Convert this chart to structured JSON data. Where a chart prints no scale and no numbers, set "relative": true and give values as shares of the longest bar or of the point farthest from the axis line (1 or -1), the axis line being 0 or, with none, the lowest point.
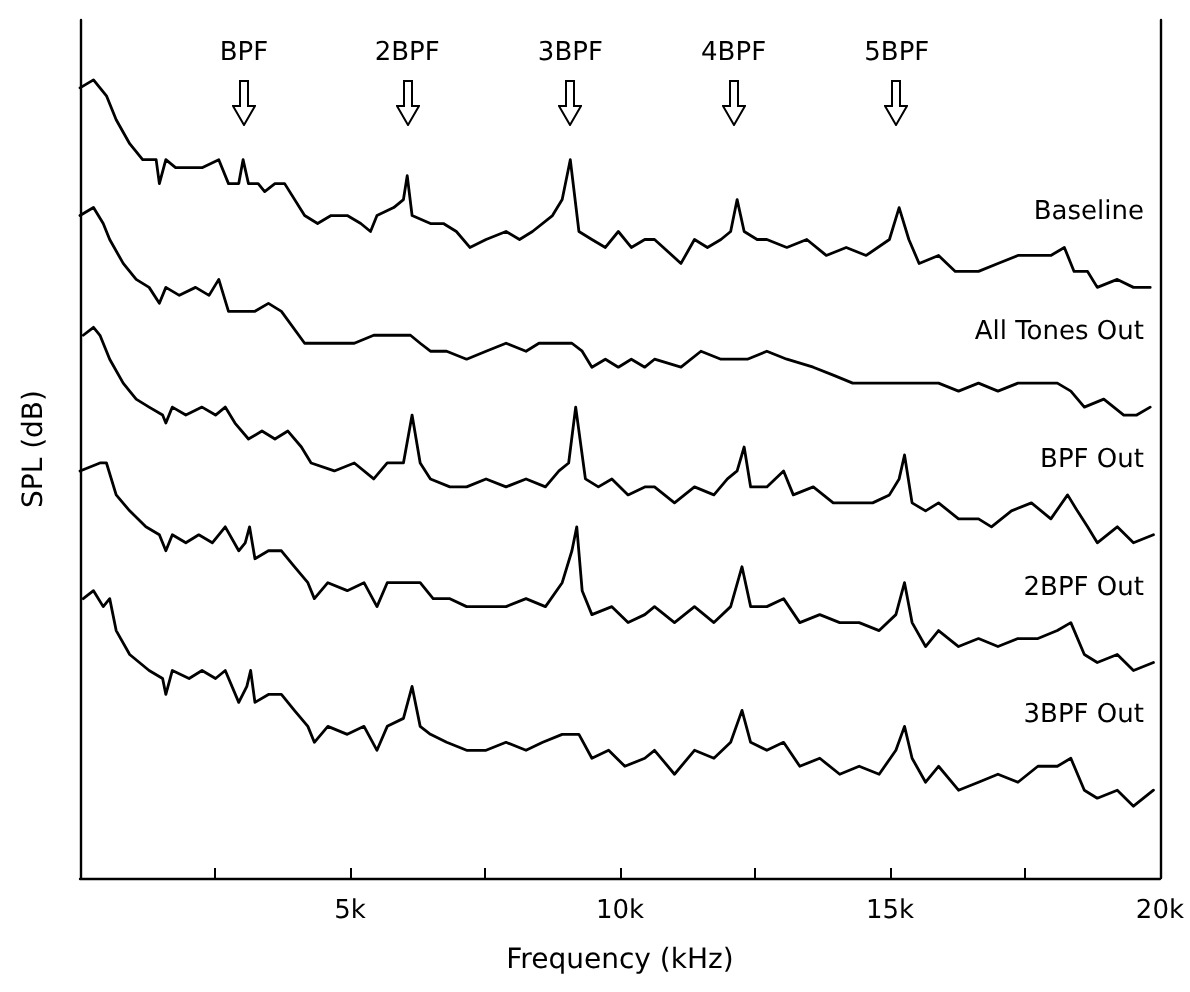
{
  "chart_data": {
    "type": "line",
    "relative": true,
    "xlabel": "Frequency (kHz)",
    "ylabel": "SPL (dB)",
    "xlim": [
      0,
      20000
    ],
    "xticks": [
      {
        "value": 2500,
        "label": null
      },
      {
        "value": 5000,
        "label": "5k"
      },
      {
        "value": 7500,
        "label": null
      },
      {
        "value": 10000,
        "label": "10k"
      },
      {
        "value": 12500,
        "label": null
      },
      {
        "value": 15000,
        "label": "15k"
      },
      {
        "value": 17500,
        "label": null
      },
      {
        "value": 20000,
        "label": "20k"
      }
    ],
    "annotations": [
      "BPF",
      "2BPF",
      "3BPF",
      "4BPF",
      "5BPF"
    ],
    "series": [
      {
        "name": "Baseline",
        "color": "#000000",
        "x": [
          0,
          250,
          370,
          490,
          670,
          920,
          1160,
          1410,
          1470,
          1590,
          1770,
          2020,
          2260,
          2570,
          2750,
          2940,
          3020,
          3120,
          3300,
          3420,
          3610,
          3790,
          4160,
          4400,
          4650,
          4950,
          5200,
          5380,
          5500,
          5810,
          5990,
          6060,
          6150,
          6490,
          6730,
          6970,
          7220,
          7520,
          7890,
          8140,
          8380,
          8750,
          8930,
          9080,
          9240,
          9480,
          9730,
          9970,
          10210,
          10460,
          10640,
          11130,
          11380,
          11620,
          11870,
          12050,
          12170,
          12300,
          12540,
          12720,
          13090,
          13460,
          13820,
          14190,
          14560,
          14990,
          15170,
          15350,
          15540,
          15900,
          16210,
          16640,
          17000,
          17370,
          17620,
          17980,
          18230,
          18410,
          18660,
          18840,
          19210,
          19510,
          19820
        ],
        "values": [
          0.99,
          1.0,
          0.99,
          0.98,
          0.95,
          0.92,
          0.9,
          0.9,
          0.87,
          0.9,
          0.89,
          0.89,
          0.89,
          0.9,
          0.87,
          0.87,
          0.9,
          0.87,
          0.87,
          0.86,
          0.87,
          0.87,
          0.83,
          0.82,
          0.83,
          0.83,
          0.82,
          0.81,
          0.83,
          0.84,
          0.85,
          0.88,
          0.83,
          0.82,
          0.82,
          0.81,
          0.79,
          0.8,
          0.81,
          0.8,
          0.81,
          0.83,
          0.85,
          0.9,
          0.81,
          0.8,
          0.79,
          0.81,
          0.79,
          0.8,
          0.8,
          0.77,
          0.8,
          0.79,
          0.8,
          0.81,
          0.85,
          0.81,
          0.8,
          0.8,
          0.79,
          0.8,
          0.78,
          0.79,
          0.78,
          0.8,
          0.84,
          0.8,
          0.77,
          0.78,
          0.76,
          0.76,
          0.77,
          0.78,
          0.78,
          0.78,
          0.79,
          0.76,
          0.76,
          0.74,
          0.75,
          0.74,
          0.74
        ]
      },
      {
        "name": "All Tones Out",
        "color": "#000000",
        "x": [
          0,
          250,
          430,
          550,
          800,
          1040,
          1280,
          1470,
          1590,
          1840,
          2140,
          2390,
          2570,
          2750,
          3000,
          3240,
          3490,
          3730,
          4160,
          4400,
          4710,
          5080,
          5440,
          5810,
          6120,
          6300,
          6490,
          6790,
          7160,
          7520,
          7890,
          8260,
          8500,
          8810,
          9110,
          9300,
          9480,
          9730,
          9970,
          10210,
          10460,
          10640,
          11130,
          11500,
          11870,
          12360,
          12720,
          13090,
          13580,
          13950,
          14310,
          14800,
          15290,
          15540,
          15900,
          16270,
          16640,
          17000,
          17370,
          17740,
          18100,
          18350,
          18600,
          18960,
          19330,
          19570,
          19820
        ],
        "values": [
          0.83,
          0.84,
          0.82,
          0.8,
          0.77,
          0.75,
          0.74,
          0.72,
          0.74,
          0.73,
          0.74,
          0.73,
          0.75,
          0.71,
          0.71,
          0.71,
          0.72,
          0.71,
          0.67,
          0.67,
          0.67,
          0.67,
          0.68,
          0.68,
          0.68,
          0.67,
          0.66,
          0.66,
          0.65,
          0.66,
          0.67,
          0.66,
          0.67,
          0.67,
          0.67,
          0.66,
          0.64,
          0.65,
          0.64,
          0.65,
          0.64,
          0.65,
          0.64,
          0.66,
          0.65,
          0.65,
          0.66,
          0.65,
          0.64,
          0.63,
          0.62,
          0.62,
          0.62,
          0.62,
          0.62,
          0.61,
          0.62,
          0.61,
          0.62,
          0.62,
          0.62,
          0.61,
          0.59,
          0.6,
          0.58,
          0.58,
          0.59
        ]
      },
      {
        "name": "BPF Out",
        "color": "#000000",
        "x": [
          60,
          250,
          370,
          550,
          800,
          1040,
          1280,
          1530,
          1590,
          1710,
          1960,
          2260,
          2510,
          2690,
          2870,
          3120,
          3370,
          3610,
          3850,
          4100,
          4280,
          4710,
          5080,
          5440,
          5690,
          5990,
          6150,
          6300,
          6490,
          6850,
          7160,
          7520,
          7890,
          8260,
          8620,
          8870,
          9050,
          9180,
          9360,
          9600,
          9850,
          10150,
          10460,
          10640,
          11010,
          11380,
          11740,
          11990,
          12170,
          12300,
          12420,
          12720,
          13030,
          13210,
          13580,
          13950,
          14310,
          14680,
          14990,
          15170,
          15270,
          15410,
          15660,
          15900,
          16270,
          16640,
          16880,
          17250,
          17620,
          17980,
          18290,
          18470,
          18660,
          18840,
          19210,
          19510,
          19880
        ],
        "values": [
          0.68,
          0.69,
          0.68,
          0.65,
          0.62,
          0.6,
          0.59,
          0.58,
          0.57,
          0.59,
          0.58,
          0.59,
          0.58,
          0.59,
          0.57,
          0.55,
          0.56,
          0.55,
          0.56,
          0.54,
          0.52,
          0.51,
          0.52,
          0.5,
          0.52,
          0.52,
          0.58,
          0.52,
          0.5,
          0.49,
          0.49,
          0.5,
          0.49,
          0.5,
          0.49,
          0.51,
          0.52,
          0.59,
          0.5,
          0.49,
          0.5,
          0.48,
          0.49,
          0.49,
          0.47,
          0.49,
          0.48,
          0.5,
          0.51,
          0.54,
          0.49,
          0.49,
          0.51,
          0.48,
          0.49,
          0.47,
          0.47,
          0.47,
          0.48,
          0.5,
          0.53,
          0.47,
          0.46,
          0.47,
          0.45,
          0.45,
          0.44,
          0.46,
          0.47,
          0.45,
          0.48,
          0.46,
          0.44,
          0.42,
          0.44,
          0.42,
          0.43
        ]
      },
      {
        "name": "2BPF Out",
        "color": "#000000",
        "x": [
          0,
          370,
          490,
          670,
          920,
          1220,
          1470,
          1590,
          1710,
          1960,
          2200,
          2450,
          2690,
          2940,
          3060,
          3140,
          3240,
          3490,
          3730,
          3970,
          4220,
          4340,
          4590,
          4950,
          5260,
          5500,
          5690,
          5930,
          6300,
          6540,
          6850,
          7160,
          7520,
          7890,
          8260,
          8620,
          8930,
          9110,
          9200,
          9300,
          9480,
          9850,
          10150,
          10460,
          10640,
          11010,
          11380,
          11740,
          12050,
          12260,
          12420,
          12720,
          13030,
          13330,
          13700,
          14070,
          14430,
          14800,
          15110,
          15270,
          15410,
          15660,
          15900,
          16270,
          16640,
          17000,
          17370,
          17740,
          18100,
          18350,
          18600,
          18840,
          19210,
          19510,
          19880
        ],
        "values": [
          0.51,
          0.52,
          0.52,
          0.48,
          0.46,
          0.44,
          0.43,
          0.41,
          0.43,
          0.42,
          0.43,
          0.42,
          0.44,
          0.41,
          0.42,
          0.44,
          0.4,
          0.41,
          0.41,
          0.39,
          0.37,
          0.35,
          0.37,
          0.36,
          0.37,
          0.34,
          0.37,
          0.37,
          0.37,
          0.35,
          0.35,
          0.34,
          0.34,
          0.34,
          0.35,
          0.34,
          0.37,
          0.41,
          0.44,
          0.36,
          0.33,
          0.34,
          0.32,
          0.33,
          0.34,
          0.32,
          0.34,
          0.32,
          0.34,
          0.39,
          0.34,
          0.34,
          0.35,
          0.32,
          0.33,
          0.32,
          0.32,
          0.31,
          0.33,
          0.37,
          0.32,
          0.29,
          0.31,
          0.29,
          0.3,
          0.29,
          0.3,
          0.3,
          0.31,
          0.32,
          0.28,
          0.27,
          0.28,
          0.26,
          0.27
        ]
      },
      {
        "name": "3BPF Out",
        "color": "#000000",
        "x": [
          60,
          250,
          430,
          550,
          670,
          920,
          1280,
          1530,
          1590,
          1710,
          2020,
          2260,
          2510,
          2690,
          2940,
          3090,
          3160,
          3240,
          3490,
          3730,
          3970,
          4220,
          4340,
          4590,
          4950,
          5260,
          5500,
          5690,
          5990,
          6150,
          6300,
          6490,
          6790,
          7160,
          7520,
          7890,
          8260,
          8570,
          8930,
          9240,
          9480,
          9790,
          10090,
          10460,
          10640,
          11010,
          11380,
          11740,
          12050,
          12260,
          12420,
          12720,
          13030,
          13330,
          13700,
          14070,
          14430,
          14800,
          15110,
          15270,
          15410,
          15660,
          15900,
          16270,
          16640,
          17000,
          17370,
          17740,
          18100,
          18350,
          18600,
          18840,
          19210,
          19510,
          19880
        ],
        "values": [
          0.35,
          0.36,
          0.34,
          0.35,
          0.31,
          0.28,
          0.26,
          0.25,
          0.23,
          0.26,
          0.25,
          0.26,
          0.25,
          0.26,
          0.22,
          0.24,
          0.26,
          0.22,
          0.23,
          0.23,
          0.21,
          0.19,
          0.17,
          0.19,
          0.18,
          0.19,
          0.16,
          0.19,
          0.2,
          0.24,
          0.19,
          0.18,
          0.17,
          0.16,
          0.16,
          0.17,
          0.16,
          0.17,
          0.18,
          0.18,
          0.15,
          0.16,
          0.14,
          0.15,
          0.16,
          0.13,
          0.16,
          0.15,
          0.17,
          0.21,
          0.17,
          0.16,
          0.17,
          0.14,
          0.15,
          0.13,
          0.14,
          0.13,
          0.16,
          0.19,
          0.15,
          0.12,
          0.14,
          0.11,
          0.12,
          0.13,
          0.12,
          0.14,
          0.14,
          0.15,
          0.11,
          0.1,
          0.11,
          0.09,
          0.11
        ]
      }
    ]
  }
}
